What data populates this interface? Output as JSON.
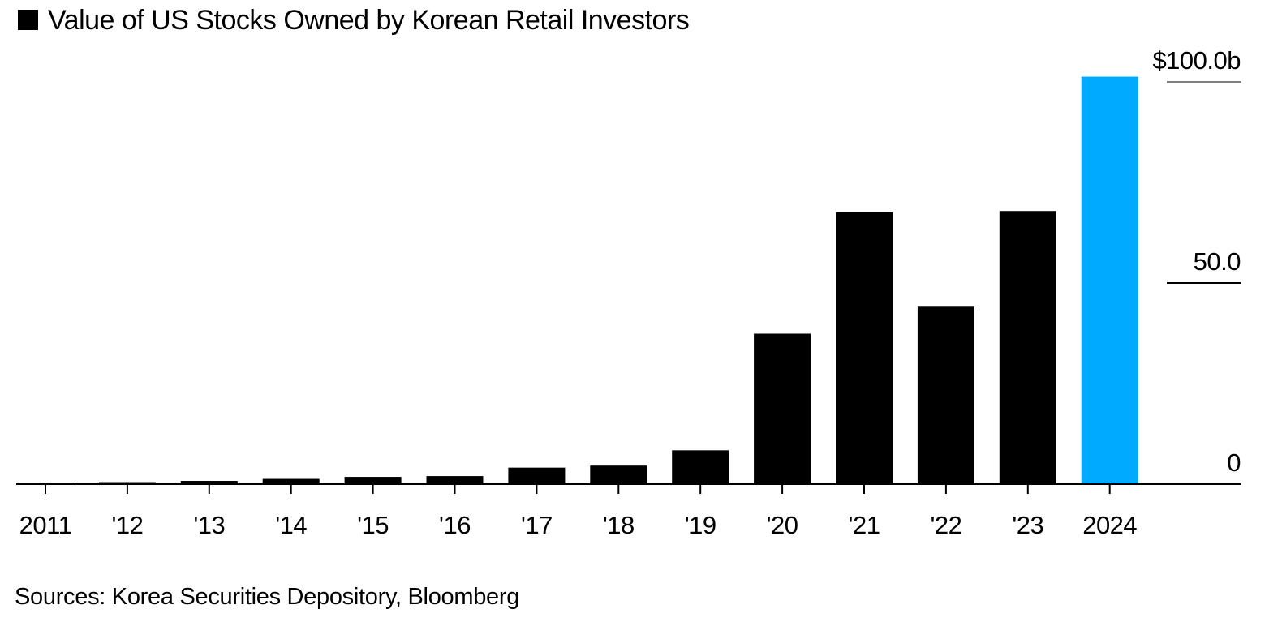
{
  "chart_data": {
    "type": "bar",
    "legend": {
      "items": [
        {
          "name": "Value of US Stocks Owned by Korean Retail Investors",
          "color": "#000000"
        }
      ],
      "placement": "top-left"
    },
    "categories": [
      "2011",
      "'12",
      "'13",
      "'14",
      "'15",
      "'16",
      "'17",
      "'18",
      "'19",
      "'20",
      "'21",
      "'22",
      "'23",
      "2024"
    ],
    "series": [
      {
        "name": "Value of US Stocks Owned by Korean Retail Investors",
        "values": [
          0.3,
          0.5,
          0.8,
          1.3,
          1.8,
          2.0,
          4.1,
          4.6,
          8.4,
          37.4,
          67.6,
          44.3,
          67.9,
          101.3
        ]
      }
    ],
    "bar_colors": [
      "#000000",
      "#000000",
      "#000000",
      "#000000",
      "#000000",
      "#000000",
      "#000000",
      "#000000",
      "#000000",
      "#000000",
      "#000000",
      "#000000",
      "#000000",
      "#00aaff"
    ],
    "y_ticks": [
      {
        "value": 0,
        "label": "0"
      },
      {
        "value": 50,
        "label": "50.0"
      },
      {
        "value": 100,
        "label": "$100.0b"
      }
    ],
    "ylim": [
      0,
      100
    ],
    "y_axis_position": "right",
    "grid": false,
    "source": "Sources: Korea Securities Depository, Bloomberg",
    "colors": {
      "bar": "#000000",
      "highlight": "#00aaff",
      "axis": "#000000",
      "tick_line_top": "#7f7f7f"
    }
  }
}
